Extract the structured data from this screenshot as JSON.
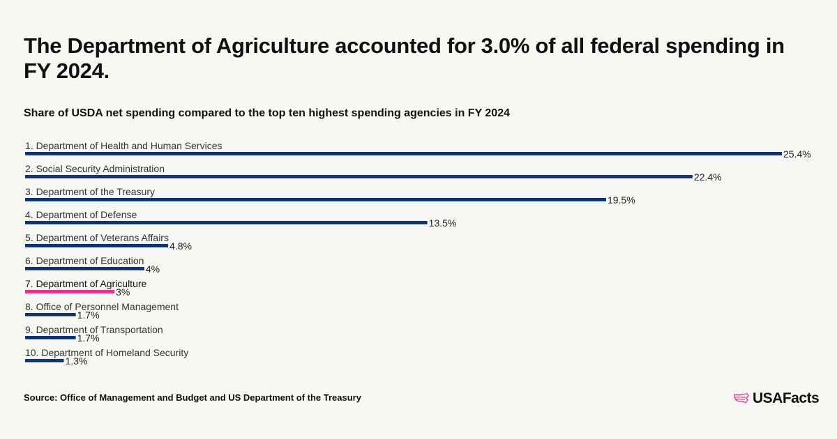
{
  "title": "The Department of Agriculture accounted for 3.0% of all federal spending in FY 2024.",
  "subtitle": "Share of USDA net spending compared to the top ten highest spending agencies in FY 2024",
  "source": "Source: Office of Management and Budget and US Department of the Treasury",
  "logo": "USAFacts",
  "colors": {
    "default": "#0b3577",
    "highlight": "#e8328d"
  },
  "chart_data": {
    "type": "bar",
    "orientation": "horizontal",
    "categories": [
      "1. Department of Health and Human Services",
      "2. Social Security Administration",
      "3. Department of the Treasury",
      "4. Department of Defense",
      "5. Department of Veterans Affairs",
      "6. Department of Education",
      "7. Department of Agriculture",
      "8. Office of Personnel Management",
      "9. Department of Transportation",
      "10. Department of Homeland Security"
    ],
    "values": [
      25.4,
      22.4,
      19.5,
      13.5,
      4.8,
      4,
      3,
      1.7,
      1.7,
      1.3
    ],
    "value_labels": [
      "25.4%",
      "22.4%",
      "19.5%",
      "13.5%",
      "4.8%",
      "4%",
      "3%",
      "1.7%",
      "1.7%",
      "1.3%"
    ],
    "highlight": "7. Department of Agriculture",
    "unit": "%",
    "grid": false,
    "legend": "none"
  }
}
